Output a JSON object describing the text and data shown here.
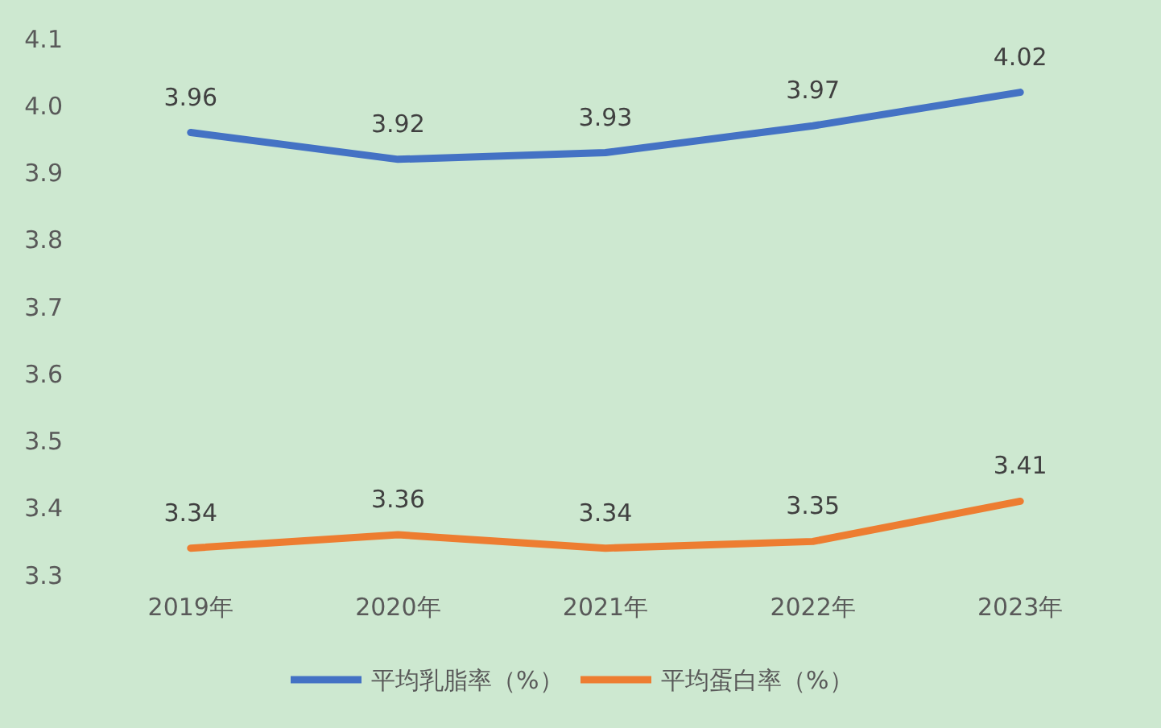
{
  "chart_data": {
    "type": "line",
    "categories": [
      "2019年",
      "2020年",
      "2021年",
      "2022年",
      "2023年"
    ],
    "series": [
      {
        "name": "平均乳脂率（%）",
        "color": "#4472c4",
        "values": [
          3.96,
          3.92,
          3.93,
          3.97,
          4.02
        ]
      },
      {
        "name": "平均蛋白率（%）",
        "color": "#ed7d31",
        "values": [
          3.34,
          3.36,
          3.34,
          3.35,
          3.41
        ]
      }
    ],
    "ylim": [
      3.3,
      4.1
    ],
    "yticks": [
      {
        "value": 3.3,
        "label": "3.3"
      },
      {
        "value": 3.4,
        "label": "3.4"
      },
      {
        "value": 3.5,
        "label": "3.5"
      },
      {
        "value": 3.6,
        "label": "3.6"
      },
      {
        "value": 3.7,
        "label": "3.7"
      },
      {
        "value": 3.8,
        "label": "3.8"
      },
      {
        "value": 3.9,
        "label": "3.9"
      },
      {
        "value": 4.0,
        "label": "4.0"
      },
      {
        "value": 4.1,
        "label": "4.1"
      }
    ],
    "data_labels": true,
    "legend": "bottom",
    "grid": false,
    "marker": "none",
    "line_style": "solid"
  }
}
